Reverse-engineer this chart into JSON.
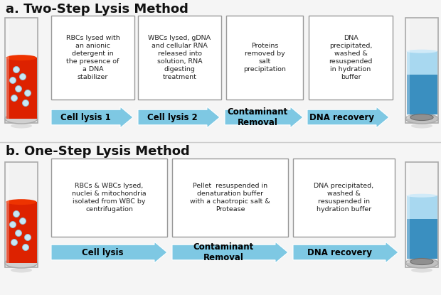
{
  "background_color": "#f5f5f5",
  "title_a": "a. Two-Step Lysis Method",
  "title_b": "b. One-Step Lysis Method",
  "title_fontsize": 13,
  "title_fontweight": "bold",
  "title_color": "#111111",
  "section_a": {
    "boxes": [
      "RBCs lysed with\nan anionic\ndetergent in\nthe presence of\na DNA\nstabilizer",
      "WBCs lysed, gDNA\nand cellular RNA\nreleased into\nsolution, RNA\ndigesting\ntreatment",
      "Proteins\nremoved by\nsalt\nprecipitation",
      "DNA\nprecipitated,\nwashed &\nresuspended\nin hydration\nbuffer"
    ],
    "arrows": [
      "Cell lysis 1",
      "Cell lysis 2",
      "Contaminant\nRemoval",
      "DNA recovery"
    ]
  },
  "section_b": {
    "boxes": [
      "RBCs & WBCs lysed,\nnuclei & mitochondria\nisolated from WBC by\ncentrifugation",
      "Pellet  resuspended in\ndenaturation buffer\nwith a chaotropic salt &\nProtease",
      "DNA precipitated,\nwashed &\nresuspended in\nhydration buffer"
    ],
    "arrows": [
      "Cell lysis",
      "Contaminant\nRemoval",
      "DNA recovery"
    ]
  },
  "arrow_color_light": "#7ec8e3",
  "arrow_color_dark": "#4a9fc8",
  "box_facecolor": "#ffffff",
  "box_edgecolor": "#999999",
  "text_color": "#222222",
  "tube_red": "#dd2200",
  "tube_blue_dark": "#3a8fc0",
  "tube_blue_light": "#a8d8f0",
  "tube_body": "#e8f4f8",
  "tube_edge": "#aaaaaa",
  "divider_color": "#cccccc"
}
